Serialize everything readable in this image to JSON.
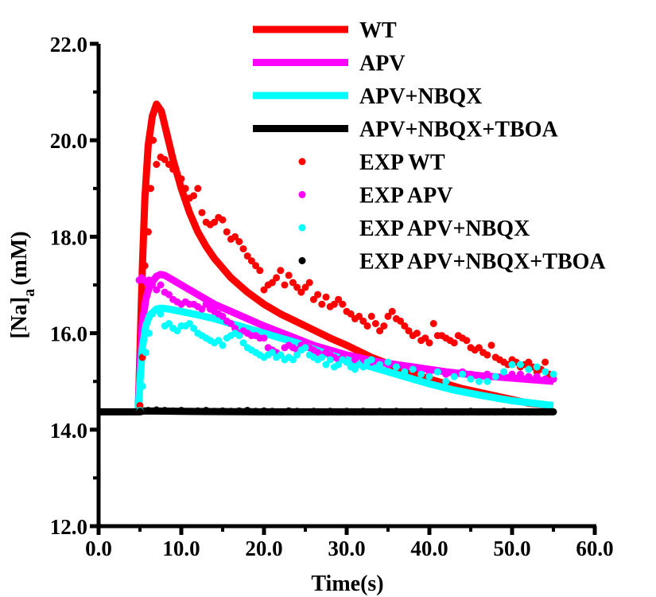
{
  "chart_data": {
    "type": "line",
    "xlabel": "Time(s)",
    "ylabel_main": "[Na]",
    "ylabel_sub": "a",
    "ylabel_unit": "(mM)",
    "xlim": [
      0,
      60
    ],
    "ylim": [
      12,
      22
    ],
    "x_ticks": [
      0,
      10,
      20,
      30,
      40,
      50,
      60
    ],
    "x_tick_labels": [
      "0.0",
      "10.0",
      "20.0",
      "30.0",
      "40.0",
      "50.0",
      "60.0"
    ],
    "y_ticks": [
      12,
      14,
      16,
      18,
      20,
      22
    ],
    "y_tick_labels": [
      "12.0",
      "14.0",
      "16.0",
      "18.0",
      "20.0",
      "22.0"
    ],
    "grid": false,
    "legend_position": "top-right",
    "series": [
      {
        "name": "WT",
        "kind": "line",
        "color": "#ff0000",
        "x": [
          4.8,
          5.0,
          5.3,
          5.6,
          6.0,
          6.5,
          7.0,
          7.6,
          8.3,
          9.0,
          10.0,
          11.0,
          12.0,
          13.0,
          14.0,
          15.0,
          16.0,
          18.0,
          20.0,
          22.0,
          25.0,
          28.0,
          30.0,
          33.0,
          36.0,
          40.0,
          44.0,
          48.0,
          52.0,
          55.0
        ],
        "y": [
          14.4,
          15.6,
          17.4,
          18.8,
          19.9,
          20.5,
          20.75,
          20.6,
          20.1,
          19.6,
          19.0,
          18.5,
          18.1,
          17.8,
          17.55,
          17.35,
          17.15,
          16.85,
          16.6,
          16.4,
          16.15,
          15.9,
          15.75,
          15.5,
          15.3,
          15.05,
          14.85,
          14.7,
          14.55,
          14.5
        ]
      },
      {
        "name": "APV",
        "kind": "line",
        "color": "#ff00ff",
        "x": [
          4.8,
          5.0,
          5.3,
          5.7,
          6.2,
          7.0,
          7.5,
          8.0,
          9.0,
          10.0,
          12.0,
          14.0,
          16.0,
          18.0,
          20.0,
          23.0,
          26.0,
          30.0,
          34.0,
          38.0,
          42.0,
          46.0,
          50.0,
          55.0
        ],
        "y": [
          14.4,
          15.3,
          16.2,
          16.7,
          17.0,
          17.18,
          17.22,
          17.2,
          17.1,
          17.0,
          16.8,
          16.6,
          16.45,
          16.3,
          16.15,
          15.95,
          15.75,
          15.55,
          15.4,
          15.3,
          15.2,
          15.12,
          15.07,
          15.0
        ]
      },
      {
        "name": "APV+NBQX",
        "kind": "line",
        "color": "#00ffff",
        "x": [
          4.8,
          5.0,
          5.3,
          5.7,
          6.2,
          7.0,
          7.6,
          8.5,
          10.0,
          12.0,
          14.0,
          16.0,
          18.0,
          20.0,
          22.0,
          24.0,
          26.0,
          28.0,
          30.0,
          32.0,
          34.0,
          36.0,
          38.0,
          40.0,
          43.0,
          46.0,
          50.0,
          55.0
        ],
        "y": [
          14.4,
          15.0,
          15.7,
          16.15,
          16.38,
          16.5,
          16.52,
          16.5,
          16.45,
          16.38,
          16.3,
          16.2,
          16.1,
          16.0,
          15.9,
          15.8,
          15.67,
          15.55,
          15.45,
          15.35,
          15.25,
          15.15,
          15.05,
          14.95,
          14.82,
          14.72,
          14.6,
          14.5
        ]
      },
      {
        "name": "APV+NBQX+TBOA",
        "kind": "line",
        "color": "#000000",
        "x": [
          0,
          5.0,
          5.5,
          10.0,
          20.0,
          30.0,
          40.0,
          50.0,
          55.0
        ],
        "y": [
          14.37,
          14.37,
          14.39,
          14.38,
          14.37,
          14.37,
          14.37,
          14.37,
          14.37
        ]
      },
      {
        "name": "EXP WT",
        "kind": "scatter",
        "color": "#ff0000",
        "x": [
          5.0,
          5.3,
          5.6,
          6.0,
          6.3,
          6.6,
          7.0,
          7.5,
          8.0,
          8.5,
          9.0,
          9.5,
          10.0,
          10.5,
          11.0,
          11.5,
          12.0,
          12.5,
          13.0,
          13.5,
          14.0,
          14.5,
          15.0,
          15.5,
          16.0,
          16.5,
          17.0,
          17.5,
          18.0,
          18.5,
          19.0,
          19.5,
          20.0,
          20.5,
          21.0,
          21.5,
          22.0,
          22.5,
          23.0,
          23.5,
          24.0,
          24.5,
          25.0,
          25.5,
          26.0,
          26.5,
          27.0,
          27.5,
          28.0,
          28.5,
          29.0,
          29.5,
          30.0,
          30.5,
          31.0,
          31.5,
          32.0,
          32.5,
          33.0,
          33.5,
          34.0,
          34.5,
          35.0,
          35.5,
          36.0,
          36.5,
          37.0,
          37.5,
          38.0,
          38.5,
          39.0,
          39.5,
          40.0,
          40.5,
          41.0,
          41.5,
          42.0,
          42.5,
          43.0,
          43.5,
          44.0,
          44.5,
          45.0,
          45.5,
          46.0,
          46.5,
          47.0,
          47.5,
          48.0,
          48.5,
          49.0,
          49.5,
          50.0,
          50.5,
          51.0,
          51.5,
          52.0,
          52.5,
          53.0,
          53.5,
          54.0,
          54.5,
          55.0
        ],
        "y": [
          14.5,
          15.5,
          17.4,
          18.1,
          19.0,
          20.0,
          19.5,
          19.65,
          19.6,
          19.5,
          19.4,
          19.3,
          19.2,
          19.0,
          18.8,
          18.85,
          19.0,
          18.5,
          18.3,
          18.25,
          18.3,
          18.4,
          18.35,
          18.1,
          17.95,
          18.0,
          17.9,
          17.75,
          17.6,
          17.5,
          17.4,
          17.3,
          16.9,
          17.0,
          17.05,
          17.15,
          17.3,
          17.0,
          17.2,
          17.05,
          16.95,
          16.85,
          16.95,
          17.05,
          16.7,
          16.8,
          16.6,
          16.75,
          16.55,
          16.6,
          16.7,
          16.6,
          16.45,
          16.4,
          16.3,
          16.35,
          16.25,
          16.15,
          16.35,
          16.2,
          16.05,
          16.15,
          16.35,
          16.45,
          16.3,
          16.25,
          16.15,
          16.05,
          15.95,
          16.0,
          15.85,
          15.9,
          15.8,
          16.2,
          15.95,
          15.95,
          15.9,
          15.85,
          15.8,
          15.95,
          15.9,
          15.85,
          15.7,
          15.65,
          15.7,
          15.6,
          15.55,
          15.75,
          15.5,
          15.45,
          15.4,
          15.35,
          15.45,
          15.4,
          15.3,
          15.35,
          15.4,
          15.3,
          15.2,
          15.25,
          15.4,
          15.15,
          15.05
        ]
      },
      {
        "name": "EXP APV",
        "kind": "scatter",
        "color": "#ff00ff",
        "x": [
          4.9,
          5.2,
          5.5,
          5.8,
          6.1,
          6.5,
          7.0,
          7.5,
          8.0,
          8.5,
          9.0,
          9.5,
          10.0,
          10.5,
          11.0,
          11.5,
          12.0,
          12.5,
          13.0,
          13.5,
          14.0,
          14.5,
          15.0,
          15.5,
          16.0,
          16.5,
          17.0,
          17.5,
          18.0,
          18.5,
          19.0,
          19.5,
          20.0,
          20.5,
          21.0,
          21.5,
          22.0,
          22.5,
          23.0,
          23.5,
          24.0,
          24.5,
          25.0,
          25.5,
          26.0,
          26.5,
          27.0,
          27.5,
          28.0,
          28.5,
          29.0,
          29.5,
          30.0,
          31.0,
          32.0,
          33.0,
          34.0,
          35.0,
          36.0,
          37.0,
          38.0,
          39.0,
          40.0,
          41.0,
          42.0,
          43.0,
          44.0,
          45.0,
          46.0,
          47.0,
          48.0,
          49.0,
          50.0,
          51.0,
          52.0,
          53.0,
          54.0,
          55.0
        ],
        "y": [
          17.1,
          17.15,
          17.1,
          17.05,
          17.1,
          17.0,
          16.9,
          17.0,
          16.85,
          16.8,
          16.7,
          16.65,
          16.6,
          16.65,
          16.6,
          16.6,
          16.55,
          16.5,
          16.6,
          16.5,
          16.45,
          16.4,
          16.35,
          16.25,
          16.2,
          16.1,
          16.0,
          16.05,
          16.0,
          15.95,
          15.95,
          15.9,
          15.9,
          15.7,
          15.65,
          15.6,
          15.55,
          15.7,
          15.75,
          15.7,
          15.65,
          15.75,
          15.8,
          15.7,
          15.65,
          15.6,
          15.55,
          15.6,
          15.55,
          15.5,
          15.45,
          15.5,
          15.4,
          15.45,
          15.4,
          15.4,
          15.35,
          15.35,
          15.3,
          15.3,
          15.25,
          15.25,
          15.2,
          15.2,
          15.15,
          15.15,
          15.2,
          15.15,
          15.1,
          15.15,
          15.1,
          15.1,
          15.15,
          15.15,
          15.1,
          15.1,
          15.05,
          15.05
        ]
      },
      {
        "name": "EXP APV+NBQX",
        "kind": "scatter",
        "color": "#00ffff",
        "x": [
          5.0,
          5.3,
          5.7,
          6.1,
          6.5,
          7.0,
          7.5,
          8.0,
          8.5,
          9.0,
          9.5,
          10.0,
          10.5,
          11.0,
          11.5,
          12.0,
          12.5,
          13.0,
          13.5,
          14.0,
          14.5,
          15.0,
          15.5,
          16.0,
          16.5,
          17.0,
          17.5,
          18.0,
          18.5,
          19.0,
          19.5,
          20.0,
          20.5,
          21.0,
          21.5,
          22.0,
          22.5,
          23.0,
          23.5,
          24.0,
          24.5,
          25.0,
          25.5,
          26.0,
          26.5,
          27.0,
          27.5,
          28.0,
          28.5,
          29.0,
          29.5,
          30.0,
          30.5,
          31.0,
          31.5,
          32.0,
          32.5,
          33.0,
          34.0,
          35.0,
          36.0,
          37.0,
          38.0,
          39.0,
          40.0,
          41.0,
          42.0,
          43.0,
          44.0,
          45.0,
          46.0,
          47.0,
          48.0,
          49.0,
          50.0,
          51.0,
          52.0,
          53.0,
          54.0,
          55.0
        ],
        "y": [
          14.4,
          14.9,
          15.6,
          16.0,
          16.4,
          16.5,
          16.4,
          16.15,
          16.2,
          16.1,
          16.05,
          16.15,
          16.15,
          16.2,
          16.1,
          16.0,
          15.95,
          15.9,
          15.85,
          15.8,
          15.85,
          15.75,
          15.9,
          15.95,
          16.0,
          15.95,
          15.8,
          15.7,
          15.65,
          15.6,
          15.55,
          15.5,
          15.55,
          15.6,
          15.5,
          15.55,
          15.45,
          15.5,
          15.45,
          15.55,
          15.65,
          15.7,
          15.55,
          15.5,
          15.45,
          15.5,
          15.35,
          15.45,
          15.3,
          15.35,
          15.45,
          15.4,
          15.3,
          15.25,
          15.35,
          15.3,
          15.4,
          15.45,
          15.35,
          15.4,
          15.3,
          15.2,
          15.25,
          15.15,
          15.1,
          15.2,
          15.0,
          15.1,
          15.15,
          15.05,
          15.0,
          15.0,
          15.1,
          15.2,
          15.35,
          15.35,
          15.25,
          15.3,
          15.2,
          15.15
        ]
      },
      {
        "name": "EXP APV+NBQX+TBOA",
        "kind": "scatter",
        "color": "#000000",
        "x": [
          5.0,
          6.0,
          7.0,
          8.0,
          9.0,
          10.0,
          11.0,
          12.0,
          13.0,
          14.0,
          15.0,
          16.0,
          17.0,
          18.0,
          19.0,
          20.0,
          21.0,
          22.0,
          23.0,
          24.0,
          25.0,
          26.0,
          27.0,
          28.0,
          29.0,
          30.0,
          31.0,
          32.0,
          33.0,
          34.0,
          35.0,
          36.0,
          37.0,
          38.0,
          39.0,
          40.0,
          41.0,
          42.0,
          43.0,
          44.0,
          45.0,
          46.0,
          47.0,
          48.0,
          49.0,
          50.0,
          51.0,
          52.0,
          53.0,
          54.0,
          55.0
        ],
        "y": [
          14.38,
          14.4,
          14.41,
          14.4,
          14.39,
          14.4,
          14.38,
          14.39,
          14.4,
          14.38,
          14.39,
          14.38,
          14.39,
          14.4,
          14.38,
          14.39,
          14.38,
          14.37,
          14.39,
          14.38,
          14.37,
          14.38,
          14.37,
          14.38,
          14.37,
          14.38,
          14.37,
          14.38,
          14.37,
          14.38,
          14.37,
          14.38,
          14.37,
          14.37,
          14.38,
          14.37,
          14.37,
          14.38,
          14.37,
          14.37,
          14.38,
          14.37,
          14.37,
          14.37,
          14.38,
          14.37,
          14.37,
          14.37,
          14.37,
          14.37,
          14.37
        ]
      }
    ]
  }
}
